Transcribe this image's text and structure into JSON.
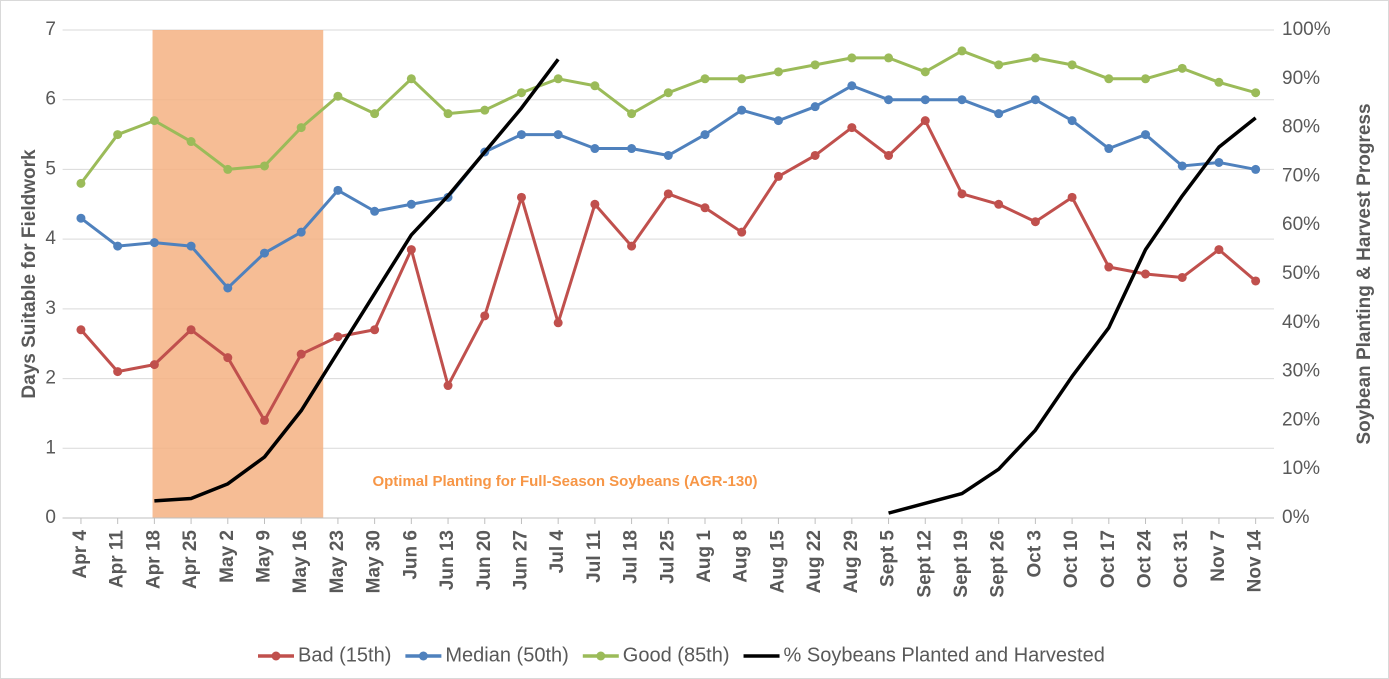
{
  "chart_data": {
    "type": "line",
    "categories": [
      "Apr 4",
      "Apr 11",
      "Apr 18",
      "Apr 25",
      "May 2",
      "May 9",
      "May 16",
      "May 23",
      "May 30",
      "Jun 6",
      "Jun 13",
      "Jun 20",
      "Jun 27",
      "Jul 4",
      "Jul 11",
      "Jul 18",
      "Jul 25",
      "Aug 1",
      "Aug 8",
      "Aug 15",
      "Aug 22",
      "Aug 29",
      "Sept 5",
      "Sept 12",
      "Sept 19",
      "Sept 26",
      "Oct 3",
      "Oct 10",
      "Oct 17",
      "Oct 24",
      "Oct 31",
      "Nov 7",
      "Nov 14"
    ],
    "series": [
      {
        "name": "Bad (15th)",
        "color": "#c0504d",
        "markers": true,
        "values": [
          2.7,
          2.1,
          2.2,
          2.7,
          2.3,
          1.4,
          2.35,
          2.6,
          2.7,
          3.85,
          1.9,
          2.9,
          4.6,
          2.8,
          4.5,
          3.9,
          4.65,
          4.45,
          4.1,
          4.9,
          5.2,
          5.6,
          5.2,
          5.7,
          4.65,
          4.5,
          4.25,
          4.6,
          3.6,
          3.5,
          3.45,
          3.85,
          3.4
        ]
      },
      {
        "name": "Median (50th)",
        "color": "#4f81bd",
        "markers": true,
        "values": [
          4.3,
          3.9,
          3.95,
          3.9,
          3.3,
          3.8,
          4.1,
          4.7,
          4.4,
          4.5,
          4.6,
          5.25,
          5.5,
          5.5,
          5.3,
          5.3,
          5.2,
          5.5,
          5.85,
          5.7,
          5.9,
          6.2,
          6.0,
          6.0,
          6.0,
          5.8,
          6.0,
          5.7,
          5.3,
          5.5,
          5.05,
          5.1,
          5.0
        ]
      },
      {
        "name": "Good (85th)",
        "color": "#9bbb59",
        "markers": true,
        "values": [
          4.8,
          5.5,
          5.7,
          5.4,
          5.0,
          5.05,
          5.6,
          6.05,
          5.8,
          6.3,
          5.8,
          5.85,
          6.1,
          6.3,
          6.2,
          5.8,
          6.1,
          6.3,
          6.3,
          6.4,
          6.5,
          6.6,
          6.6,
          6.4,
          6.7,
          6.5,
          6.6,
          6.5,
          6.3,
          6.3,
          6.45,
          6.25,
          6.1
        ]
      },
      {
        "name": "% Soybeans Planted and Harvested",
        "color": "#000000",
        "markers": false,
        "axis": "y2",
        "values": [
          null,
          null,
          3.5,
          4,
          7,
          12.5,
          22,
          34,
          46,
          58,
          66,
          75,
          84,
          94,
          null,
          null,
          null,
          null,
          null,
          null,
          null,
          null,
          1,
          3,
          5,
          10,
          18,
          29,
          39,
          55,
          66,
          76,
          82
        ]
      }
    ],
    "ylabel": "Days Suitable for Fieldwork",
    "y2label": "Soybean Planting & Harvest Progress",
    "ylim": [
      0,
      7
    ],
    "yticks": [
      0,
      1,
      2,
      3,
      4,
      5,
      6,
      7
    ],
    "y2lim": [
      0,
      100
    ],
    "y2ticks": [
      {
        "value": 0,
        "label": "0%"
      },
      {
        "value": 10,
        "label": "10%"
      },
      {
        "value": 20,
        "label": "20%"
      },
      {
        "value": 30,
        "label": "30%"
      },
      {
        "value": 40,
        "label": "40%"
      },
      {
        "value": 50,
        "label": "50%"
      },
      {
        "value": 60,
        "label": "60%"
      },
      {
        "value": 70,
        "label": "70%"
      },
      {
        "value": 80,
        "label": "80%"
      },
      {
        "value": 90,
        "label": "90%"
      },
      {
        "value": 100,
        "label": "100%"
      }
    ],
    "grid": true,
    "legend": "bottom",
    "highlight": {
      "label": "Optimal Planting for Full-Season Soybeans (AGR-130)",
      "from": 1.95,
      "to": 6.6,
      "color": "#f4b183"
    }
  }
}
